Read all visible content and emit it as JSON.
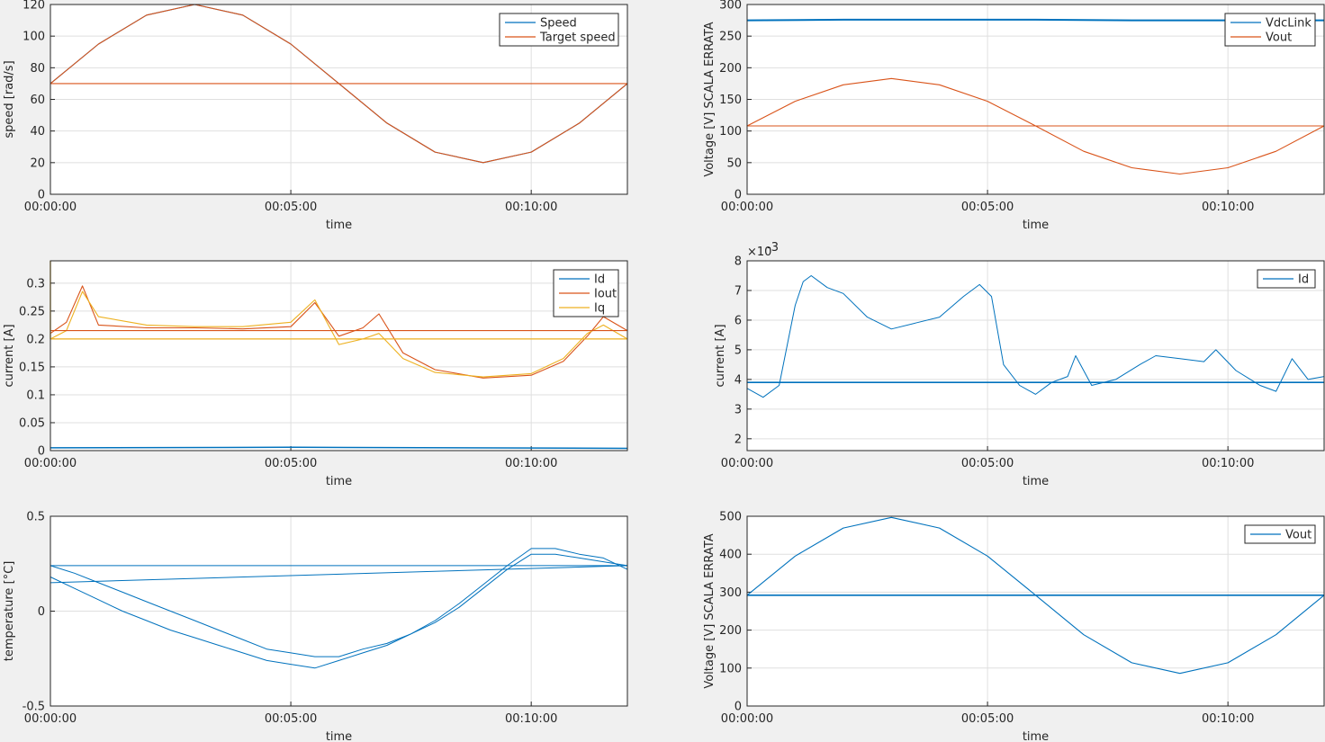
{
  "figure": {
    "background": "#f0f0f0",
    "series_colors": {
      "blue": "#0072bd",
      "orange": "#d95319",
      "yellow": "#edb120"
    }
  },
  "chart_data": [
    {
      "id": "speed",
      "type": "line",
      "xlabel": "time",
      "ylabel": "speed [rad/s]",
      "x_unit": "hh:mm:ss",
      "xlim": [
        "00:00:00",
        "00:12:00"
      ],
      "xticks": [
        "00:00:00",
        "00:05:00",
        "00:10:00"
      ],
      "ylim": [
        0,
        120
      ],
      "yticks": [
        0,
        20,
        40,
        60,
        80,
        100,
        120
      ],
      "ytick_labels": [
        "0",
        "20",
        "40",
        "60",
        "80",
        "100",
        "120"
      ],
      "grid": true,
      "legend_position": "top-right",
      "series": [
        {
          "name": "Speed",
          "color": "#0072bd",
          "width": 1.1,
          "x": [
            "00:00:00",
            "00:01:00",
            "00:02:00",
            "00:03:00",
            "00:04:00",
            "00:05:00",
            "00:06:00",
            "00:07:00",
            "00:08:00",
            "00:09:00",
            "00:10:00",
            "00:11:00",
            "00:12:00"
          ],
          "y": [
            70,
            95,
            113.3,
            120,
            113.3,
            95,
            70,
            45,
            26.7,
            20,
            26.7,
            45,
            70
          ]
        },
        {
          "name": "Target speed",
          "color": "#d95319",
          "width": 1.1,
          "x": [
            "00:00:00",
            "00:01:00",
            "00:02:00",
            "00:03:00",
            "00:04:00",
            "00:05:00",
            "00:06:00",
            "00:07:00",
            "00:08:00",
            "00:09:00",
            "00:10:00",
            "00:11:00",
            "00:12:00"
          ],
          "y": [
            70,
            95,
            113.3,
            120,
            113.3,
            95,
            70,
            45,
            26.7,
            20,
            26.7,
            45,
            70
          ]
        },
        {
          "name": "",
          "color": "#d95319",
          "width": 1.1,
          "x": [
            "00:00:00",
            "00:12:00"
          ],
          "y": [
            70,
            70
          ]
        }
      ]
    },
    {
      "id": "voltage-top",
      "type": "line",
      "xlabel": "time",
      "ylabel": "Voltage [V] SCALA ERRATA",
      "x_unit": "hh:mm:ss",
      "xlim": [
        "00:00:00",
        "00:12:00"
      ],
      "xticks": [
        "00:00:00",
        "00:05:00",
        "00:10:00"
      ],
      "ylim": [
        0,
        300
      ],
      "yticks": [
        0,
        50,
        100,
        150,
        200,
        250,
        300
      ],
      "ytick_labels": [
        "0",
        "50",
        "100",
        "150",
        "200",
        "250",
        "300"
      ],
      "grid": true,
      "legend_position": "top-right",
      "series": [
        {
          "name": "VdcLink",
          "color": "#0072bd",
          "width": 2,
          "x": [
            "00:00:00",
            "00:02:00",
            "00:04:00",
            "00:06:00",
            "00:08:00",
            "00:10:00",
            "00:12:00"
          ],
          "y": [
            275,
            276,
            276,
            276,
            275,
            275,
            275
          ]
        },
        {
          "name": "Vout",
          "color": "#d95319",
          "width": 1.1,
          "x": [
            "00:00:00",
            "00:01:00",
            "00:02:00",
            "00:03:00",
            "00:04:00",
            "00:05:00",
            "00:06:00",
            "00:07:00",
            "00:08:00",
            "00:09:00",
            "00:10:00",
            "00:11:00",
            "00:12:00"
          ],
          "y": [
            108,
            147,
            173,
            183,
            173,
            147,
            108,
            68,
            42,
            32,
            42,
            68,
            108
          ]
        },
        {
          "name": "",
          "color": "#d95319",
          "width": 1.1,
          "x": [
            "00:00:00",
            "00:12:00"
          ],
          "y": [
            108,
            108
          ]
        }
      ]
    },
    {
      "id": "current-a",
      "type": "line",
      "xlabel": "time",
      "ylabel": "current [A]",
      "x_unit": "hh:mm:ss",
      "xlim": [
        "00:00:00",
        "00:12:00"
      ],
      "xticks": [
        "00:00:00",
        "00:05:00",
        "00:10:00"
      ],
      "ylim": [
        0,
        0.34
      ],
      "yticks": [
        0,
        0.05,
        0.1,
        0.15,
        0.2,
        0.25,
        0.3
      ],
      "ytick_labels": [
        "0",
        "0.05",
        "0.1",
        "0.15",
        "0.2",
        "0.25",
        "0.3"
      ],
      "grid": true,
      "legend_position": "top-right",
      "series": [
        {
          "name": "Id",
          "color": "#0072bd",
          "width": 1.5,
          "x": [
            "00:00:00",
            "00:05:00",
            "00:12:00"
          ],
          "y": [
            0.005,
            0.006,
            0.004
          ]
        },
        {
          "name": "Iout",
          "color": "#d95319",
          "width": 1.1,
          "x": [
            "00:00:00",
            "00:00:20",
            "00:00:40",
            "00:01:00",
            "00:02:00",
            "00:03:00",
            "00:04:00",
            "00:05:00",
            "00:05:30",
            "00:06:00",
            "00:06:30",
            "00:06:50",
            "00:07:20",
            "00:08:00",
            "00:09:00",
            "00:10:00",
            "00:10:40",
            "00:11:10",
            "00:11:30",
            "00:12:00"
          ],
          "y": [
            0.21,
            0.23,
            0.295,
            0.225,
            0.22,
            0.22,
            0.218,
            0.222,
            0.265,
            0.205,
            0.22,
            0.245,
            0.175,
            0.145,
            0.13,
            0.135,
            0.16,
            0.205,
            0.24,
            0.215
          ]
        },
        {
          "name": "Iq",
          "color": "#edb120",
          "width": 1.1,
          "x": [
            "00:00:00",
            "00:00:20",
            "00:00:40",
            "00:01:00",
            "00:02:00",
            "00:03:00",
            "00:04:00",
            "00:05:00",
            "00:05:30",
            "00:06:00",
            "00:06:30",
            "00:06:50",
            "00:07:20",
            "00:08:00",
            "00:09:00",
            "00:10:00",
            "00:10:40",
            "00:11:10",
            "00:11:30",
            "00:12:00"
          ],
          "y": [
            0.2,
            0.215,
            0.285,
            0.24,
            0.225,
            0.222,
            0.222,
            0.23,
            0.27,
            0.19,
            0.2,
            0.21,
            0.165,
            0.14,
            0.132,
            0.138,
            0.165,
            0.21,
            0.225,
            0.2
          ]
        },
        {
          "name": "",
          "color": "#d95319",
          "width": 1.1,
          "x": [
            "00:00:00",
            "00:12:00"
          ],
          "y": [
            0.215,
            0.215
          ]
        },
        {
          "name": "",
          "color": "#edb120",
          "width": 1.3,
          "x": [
            "00:00:00",
            "00:12:00"
          ],
          "y": [
            0.2,
            0.2
          ]
        },
        {
          "name": "",
          "color": "#edb120",
          "width": 1.3,
          "x": [
            "00:00:00",
            "00:00:00"
          ],
          "y": [
            0.2,
            0.34
          ]
        }
      ]
    },
    {
      "id": "current-b",
      "type": "line",
      "xlabel": "time",
      "ylabel": "current [A]",
      "x_unit": "hh:mm:ss",
      "xlim": [
        "00:00:00",
        "00:12:00"
      ],
      "xticks": [
        "00:00:00",
        "00:05:00",
        "00:10:00"
      ],
      "ylim": [
        0.0016,
        0.008
      ],
      "yticks": [
        0.002,
        0.003,
        0.004,
        0.005,
        0.006,
        0.007,
        0.008
      ],
      "ytick_labels": [
        "2",
        "3",
        "4",
        "5",
        "6",
        "7",
        "8"
      ],
      "axis_multiplier": "×10",
      "axis_exponent": "-3",
      "grid": true,
      "legend_position": "top-right",
      "series": [
        {
          "name": "Id",
          "color": "#0072bd",
          "width": 1,
          "x": [
            "00:00:00",
            "00:00:20",
            "00:00:40",
            "00:01:00",
            "00:01:10",
            "00:01:20",
            "00:01:40",
            "00:02:00",
            "00:02:30",
            "00:03:00",
            "00:03:30",
            "00:04:00",
            "00:04:30",
            "00:04:50",
            "00:05:05",
            "00:05:20",
            "00:05:40",
            "00:06:00",
            "00:06:20",
            "00:06:40",
            "00:06:50",
            "00:07:10",
            "00:07:40",
            "00:08:10",
            "00:08:30",
            "00:09:00",
            "00:09:30",
            "00:09:45",
            "00:10:10",
            "00:10:40",
            "00:11:00",
            "00:11:20",
            "00:11:40",
            "00:12:00"
          ],
          "y": [
            0.0037,
            0.0034,
            0.0038,
            0.0065,
            0.0073,
            0.0075,
            0.0071,
            0.0069,
            0.0061,
            0.0057,
            0.0059,
            0.0061,
            0.0068,
            0.0072,
            0.0068,
            0.0045,
            0.0038,
            0.0035,
            0.0039,
            0.0041,
            0.0048,
            0.0038,
            0.004,
            0.0045,
            0.0048,
            0.0047,
            0.0046,
            0.005,
            0.0043,
            0.0038,
            0.0036,
            0.0047,
            0.004,
            0.0041
          ]
        },
        {
          "name": "",
          "color": "#0072bd",
          "width": 1.6,
          "x": [
            "00:00:00",
            "00:12:00"
          ],
          "y": [
            0.0039,
            0.0039
          ]
        }
      ]
    },
    {
      "id": "temperature",
      "type": "line",
      "xlabel": "time",
      "ylabel": "temperature [°C]",
      "x_unit": "hh:mm:ss",
      "xlim": [
        "00:00:00",
        "00:12:00"
      ],
      "xticks": [
        "00:00:00",
        "00:05:00",
        "00:10:00"
      ],
      "ylim": [
        -0.5,
        0.5
      ],
      "yticks": [
        -0.5,
        0,
        0.5
      ],
      "ytick_labels": [
        "-0.5",
        "0",
        "0.5"
      ],
      "grid": true,
      "legend_position": "",
      "series": [
        {
          "name": "",
          "color": "#0072bd",
          "width": 1,
          "x": [
            "00:00:00",
            "00:00:30",
            "00:01:00",
            "00:01:30",
            "00:02:00",
            "00:02:30",
            "00:03:00",
            "00:03:30",
            "00:04:00",
            "00:04:30",
            "00:05:00",
            "00:05:30",
            "00:06:00",
            "00:06:30",
            "00:07:00",
            "00:07:30",
            "00:08:00",
            "00:08:30",
            "00:09:00",
            "00:09:30",
            "00:10:00",
            "00:10:30",
            "00:11:00",
            "00:11:30",
            "00:12:00"
          ],
          "y": [
            0.24,
            0.2,
            0.15,
            0.1,
            0.05,
            0.0,
            -0.05,
            -0.1,
            -0.15,
            -0.2,
            -0.22,
            -0.24,
            -0.24,
            -0.2,
            -0.17,
            -0.12,
            -0.06,
            0.02,
            0.12,
            0.22,
            0.3,
            0.3,
            0.28,
            0.26,
            0.24
          ]
        },
        {
          "name": "",
          "color": "#0072bd",
          "width": 1,
          "x": [
            "00:00:00",
            "00:00:30",
            "00:01:00",
            "00:01:30",
            "00:02:00",
            "00:02:30",
            "00:03:00",
            "00:03:30",
            "00:04:00",
            "00:04:30",
            "00:05:00",
            "00:05:30",
            "00:06:00",
            "00:06:30",
            "00:07:00",
            "00:07:30",
            "00:08:00",
            "00:08:30",
            "00:09:00",
            "00:09:30",
            "00:10:00",
            "00:10:30",
            "00:11:00",
            "00:11:30",
            "00:12:00"
          ],
          "y": [
            0.18,
            0.12,
            0.06,
            0.0,
            -0.05,
            -0.1,
            -0.14,
            -0.18,
            -0.22,
            -0.26,
            -0.28,
            -0.3,
            -0.26,
            -0.22,
            -0.18,
            -0.12,
            -0.05,
            0.04,
            0.14,
            0.24,
            0.33,
            0.33,
            0.3,
            0.28,
            0.22
          ]
        },
        {
          "name": "",
          "color": "#0072bd",
          "width": 1,
          "x": [
            "00:00:00",
            "00:12:00"
          ],
          "y": [
            0.24,
            0.24
          ]
        },
        {
          "name": "",
          "color": "#0072bd",
          "width": 1,
          "x": [
            "00:00:00",
            "00:12:00"
          ],
          "y": [
            0.15,
            0.24
          ]
        }
      ]
    },
    {
      "id": "voltage-bottom",
      "type": "line",
      "xlabel": "time",
      "ylabel": "Voltage [V] SCALA ERRATA",
      "x_unit": "hh:mm:ss",
      "xlim": [
        "00:00:00",
        "00:12:00"
      ],
      "xticks": [
        "00:00:00",
        "00:05:00",
        "00:10:00"
      ],
      "ylim": [
        0,
        500
      ],
      "yticks": [
        0,
        100,
        200,
        300,
        400,
        500
      ],
      "ytick_labels": [
        "0",
        "100",
        "200",
        "300",
        "400",
        "500"
      ],
      "grid": true,
      "legend_position": "top-right",
      "series": [
        {
          "name": "Vout",
          "color": "#0072bd",
          "width": 1.1,
          "x": [
            "00:00:00",
            "00:01:00",
            "00:02:00",
            "00:03:00",
            "00:04:00",
            "00:05:00",
            "00:06:00",
            "00:07:00",
            "00:08:00",
            "00:09:00",
            "00:10:00",
            "00:11:00",
            "00:12:00"
          ],
          "y": [
            292,
            395,
            469,
            497,
            469,
            395,
            292,
            188,
            114,
            86,
            114,
            188,
            292
          ]
        },
        {
          "name": "",
          "color": "#0072bd",
          "width": 1.6,
          "x": [
            "00:00:00",
            "00:12:00"
          ],
          "y": [
            292,
            292
          ]
        }
      ]
    }
  ]
}
